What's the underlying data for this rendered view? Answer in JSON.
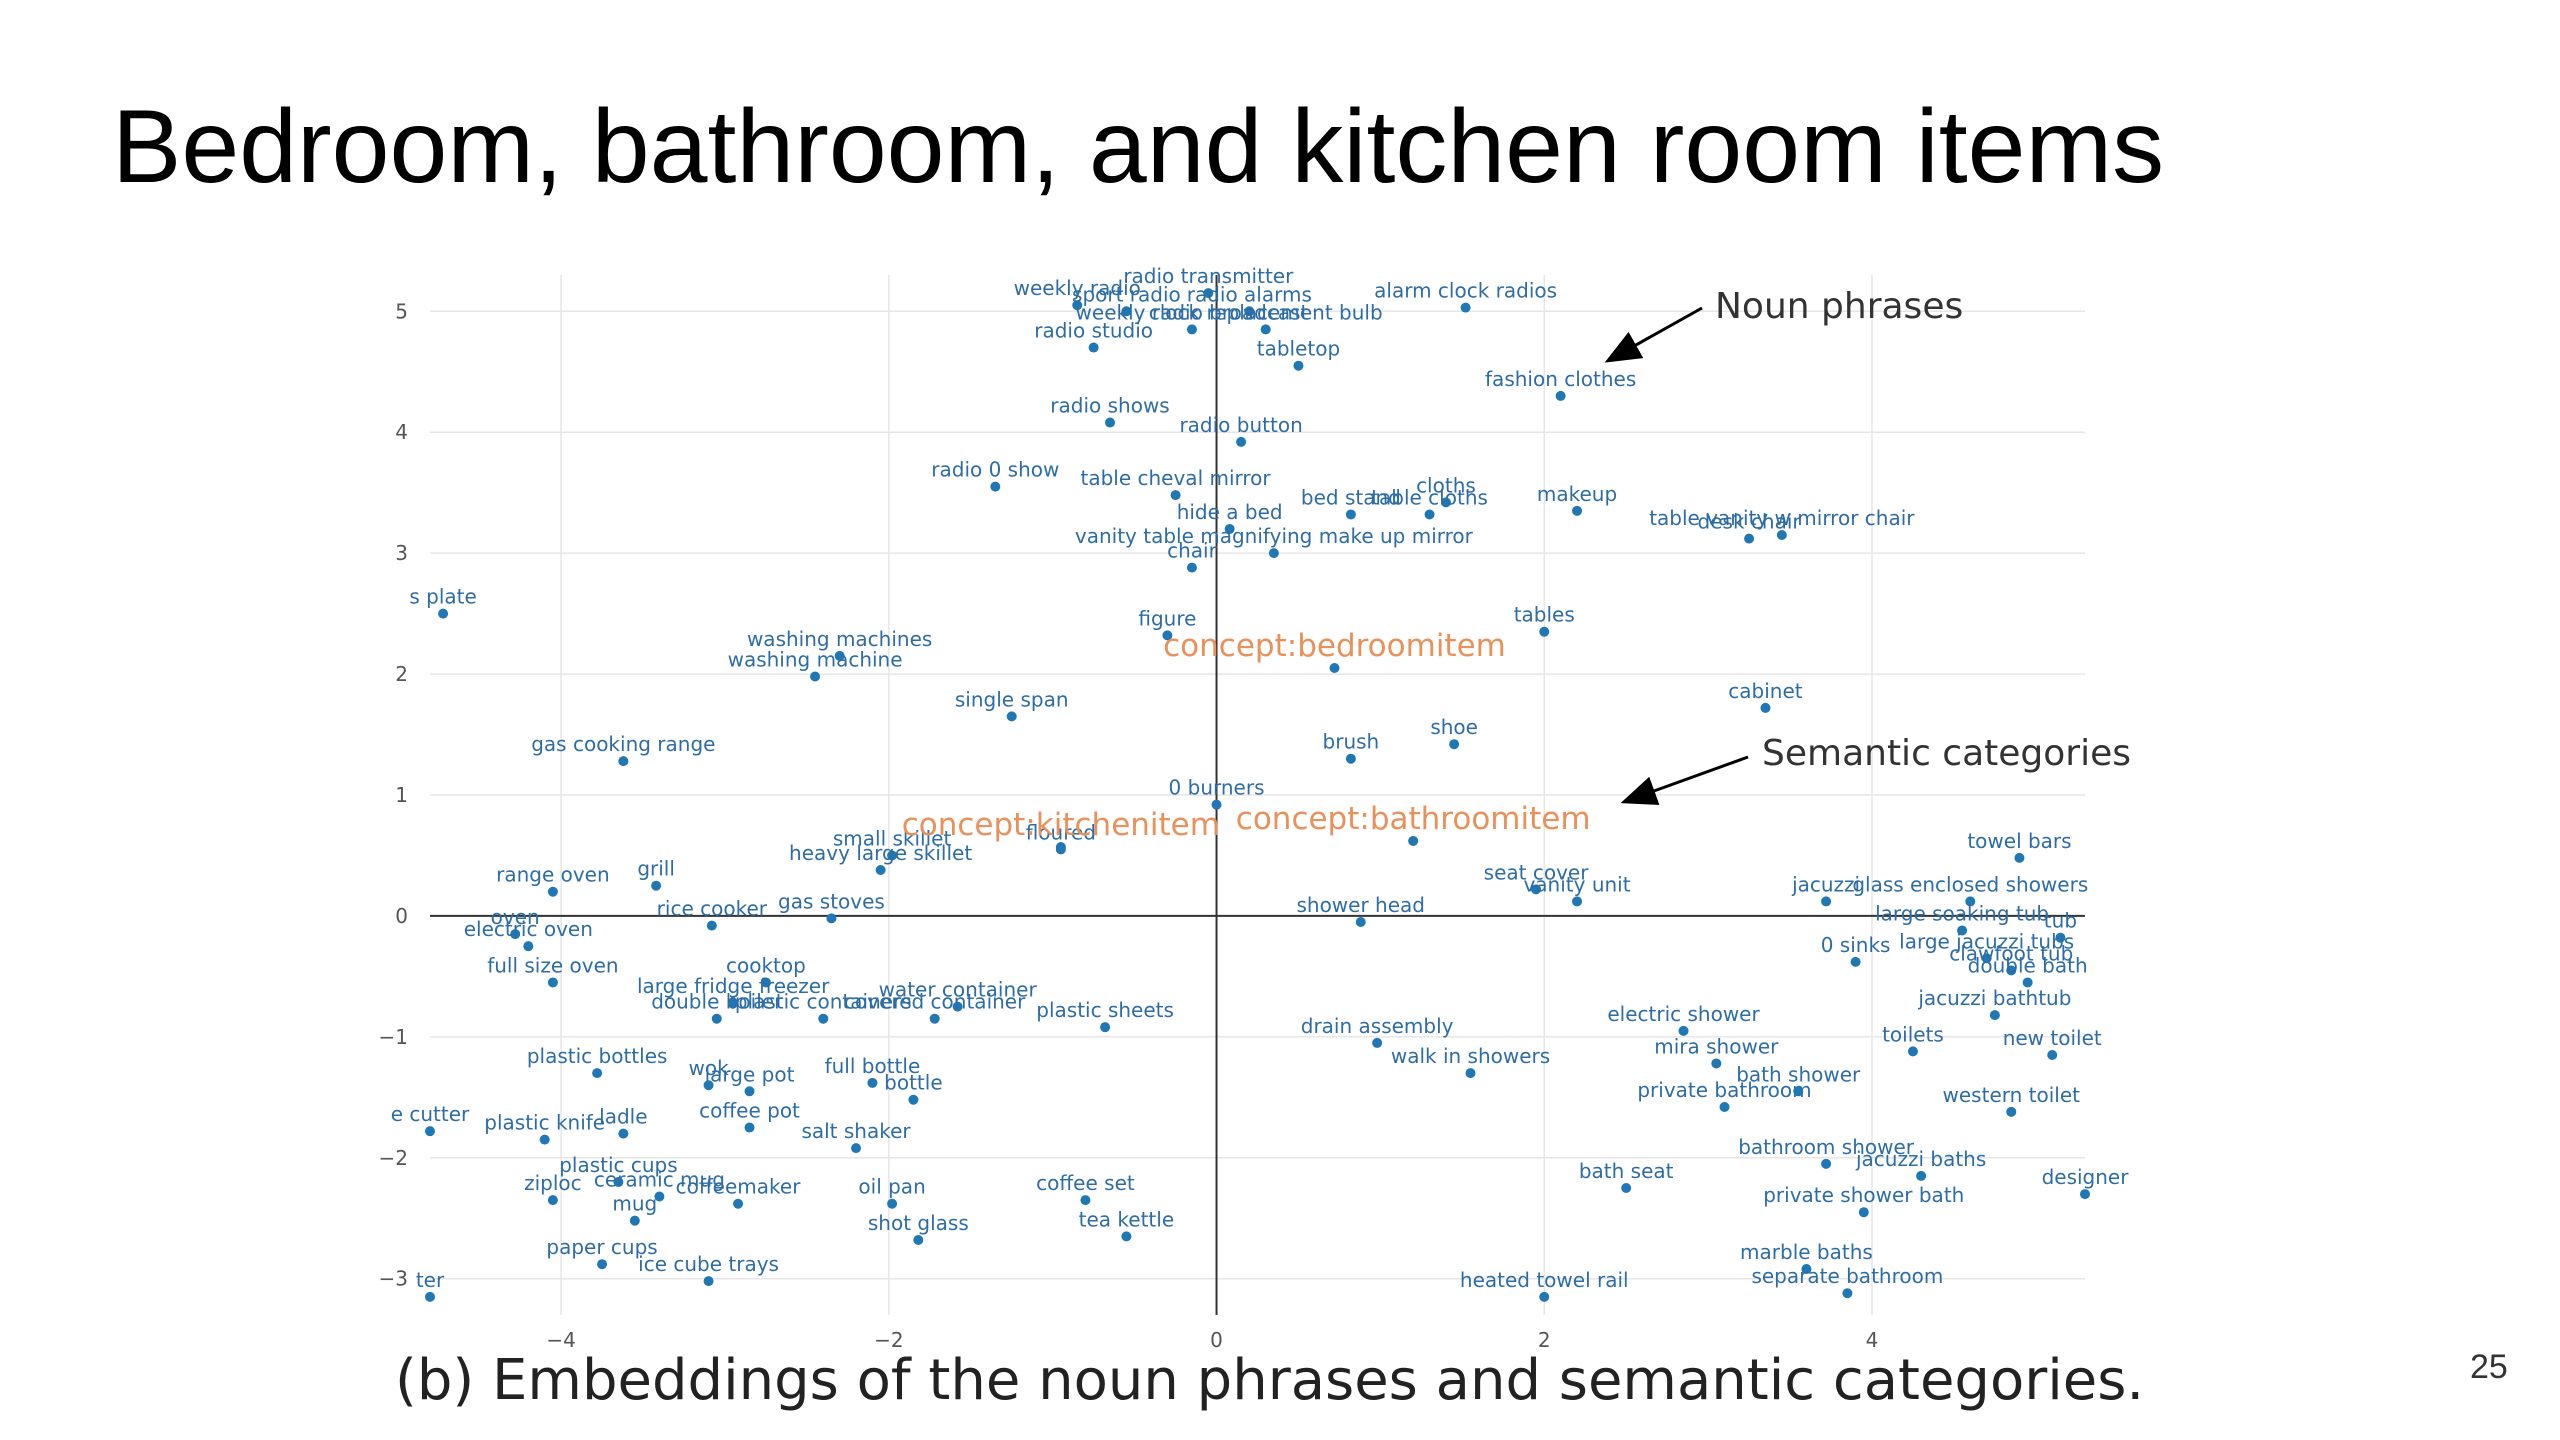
{
  "slide": {
    "title": "Bedroom, bathroom, and kitchen room items",
    "caption": "(b)  Embeddings of the noun phrases and semantic categories.",
    "page_number": "25"
  },
  "colors": {
    "point": "#1f77b4",
    "point_label": "#2e6da4",
    "category": "#e8915a",
    "axis": "#333333",
    "grid": "#e6e6e6"
  },
  "chart_data": {
    "type": "scatter",
    "xlim": [
      -4.8,
      5.3
    ],
    "ylim": [
      -3.3,
      5.3
    ],
    "x_ticks": [
      -4,
      -2,
      0,
      2,
      4
    ],
    "y_ticks": [
      -3,
      -2,
      -1,
      0,
      1,
      2,
      3,
      4,
      5
    ],
    "grid": true,
    "annotations": [
      {
        "text": "Noun phrases",
        "point_at": [
          2.4,
          4.6
        ]
      },
      {
        "text": "Semantic categories",
        "point_at": [
          2.5,
          0.95
        ]
      }
    ],
    "categories": [
      {
        "label": "concept:bedroomitem",
        "x": 0.72,
        "y": 2.05
      },
      {
        "label": "concept:bathroomitem",
        "x": 1.2,
        "y": 0.62
      },
      {
        "label": "concept:kitchenitem",
        "x": -0.95,
        "y": 0.57
      }
    ],
    "points": [
      {
        "label": "weekly radio",
        "x": -0.85,
        "y": 5.05
      },
      {
        "label": "radio transmitter",
        "x": -0.05,
        "y": 5.15
      },
      {
        "label": "sport radio",
        "x": -0.55,
        "y": 5.0
      },
      {
        "label": "radio alarms",
        "x": 0.2,
        "y": 5.0
      },
      {
        "label": "weekly radio broadcast",
        "x": -0.15,
        "y": 4.85
      },
      {
        "label": "clock replacement bulb",
        "x": 0.3,
        "y": 4.85
      },
      {
        "label": "alarm clock radios",
        "x": 1.52,
        "y": 5.03
      },
      {
        "label": "tabletop",
        "x": 0.5,
        "y": 4.55
      },
      {
        "label": "radio studio",
        "x": -0.75,
        "y": 4.7
      },
      {
        "label": "fashion clothes",
        "x": 2.1,
        "y": 4.3
      },
      {
        "label": "radio shows",
        "x": -0.65,
        "y": 4.08
      },
      {
        "label": "radio button",
        "x": 0.15,
        "y": 3.92
      },
      {
        "label": "radio 0 show",
        "x": -1.35,
        "y": 3.55
      },
      {
        "label": "table cheval mirror",
        "x": -0.25,
        "y": 3.48
      },
      {
        "label": "cloths",
        "x": 1.4,
        "y": 3.42
      },
      {
        "label": "table cloths",
        "x": 1.3,
        "y": 3.32
      },
      {
        "label": "bed stand",
        "x": 0.82,
        "y": 3.32
      },
      {
        "label": "makeup",
        "x": 2.2,
        "y": 3.35
      },
      {
        "label": "table vanity w mirror chair",
        "x": 3.45,
        "y": 3.15
      },
      {
        "label": "desk chair",
        "x": 3.25,
        "y": 3.12
      },
      {
        "label": "hide a bed",
        "x": 0.08,
        "y": 3.2
      },
      {
        "label": "vanity table magnifying make up mirror",
        "x": 0.35,
        "y": 3.0
      },
      {
        "label": "chair",
        "x": -0.15,
        "y": 2.88
      },
      {
        "label": "s plate",
        "x": -4.72,
        "y": 2.5
      },
      {
        "label": "washing machines",
        "x": -2.3,
        "y": 2.15
      },
      {
        "label": "washing machine",
        "x": -2.45,
        "y": 1.98
      },
      {
        "label": "figure",
        "x": -0.3,
        "y": 2.32
      },
      {
        "label": "tables",
        "x": 2.0,
        "y": 2.35
      },
      {
        "label": "single span",
        "x": -1.25,
        "y": 1.65
      },
      {
        "label": "cabinet",
        "x": 3.35,
        "y": 1.72
      },
      {
        "label": "shoe",
        "x": 1.45,
        "y": 1.42
      },
      {
        "label": "brush",
        "x": 0.82,
        "y": 1.3
      },
      {
        "label": "gas cooking range",
        "x": -3.62,
        "y": 1.28
      },
      {
        "label": "0 burners",
        "x": 0.0,
        "y": 0.92
      },
      {
        "label": "towel bars",
        "x": 4.9,
        "y": 0.48
      },
      {
        "label": "small skillet",
        "x": -1.98,
        "y": 0.5
      },
      {
        "label": "heavy large skillet",
        "x": -2.05,
        "y": 0.38
      },
      {
        "label": "floured",
        "x": -0.95,
        "y": 0.55
      },
      {
        "label": "range oven",
        "x": -4.05,
        "y": 0.2
      },
      {
        "label": "grill",
        "x": -3.42,
        "y": 0.25
      },
      {
        "label": "seat cover",
        "x": 1.95,
        "y": 0.22
      },
      {
        "label": "vanity unit",
        "x": 2.2,
        "y": 0.12
      },
      {
        "label": "jacuzzi",
        "x": 3.72,
        "y": 0.12
      },
      {
        "label": "glass enclosed showers",
        "x": 4.6,
        "y": 0.12
      },
      {
        "label": "rice cooker",
        "x": -3.08,
        "y": -0.08
      },
      {
        "label": "gas stoves",
        "x": -2.35,
        "y": -0.02
      },
      {
        "label": "shower head",
        "x": 0.88,
        "y": -0.05
      },
      {
        "label": "large soaking tub",
        "x": 4.55,
        "y": -0.12
      },
      {
        "label": "tub",
        "x": 5.15,
        "y": -0.18
      },
      {
        "label": "oven",
        "x": -4.28,
        "y": -0.15
      },
      {
        "label": "electric oven",
        "x": -4.2,
        "y": -0.25
      },
      {
        "label": "cooktop",
        "x": -2.75,
        "y": -0.55
      },
      {
        "label": "0 sinks",
        "x": 3.9,
        "y": -0.38
      },
      {
        "label": "large jacuzzi tubs",
        "x": 4.7,
        "y": -0.35
      },
      {
        "label": "clawfoot tub",
        "x": 4.85,
        "y": -0.45
      },
      {
        "label": "double bath",
        "x": 4.95,
        "y": -0.55
      },
      {
        "label": "full size oven",
        "x": -4.05,
        "y": -0.55
      },
      {
        "label": "large fridge freezer",
        "x": -2.95,
        "y": -0.72
      },
      {
        "label": "water container",
        "x": -1.58,
        "y": -0.75
      },
      {
        "label": "covered container",
        "x": -1.72,
        "y": -0.85
      },
      {
        "label": "double boiler",
        "x": -3.05,
        "y": -0.85
      },
      {
        "label": "plastic containers",
        "x": -2.4,
        "y": -0.85
      },
      {
        "label": "plastic sheets",
        "x": -0.68,
        "y": -0.92
      },
      {
        "label": "jacuzzi bathtub",
        "x": 4.75,
        "y": -0.82
      },
      {
        "label": "drain assembly",
        "x": 0.98,
        "y": -1.05
      },
      {
        "label": "electric shower",
        "x": 2.85,
        "y": -0.95
      },
      {
        "label": "toilets",
        "x": 4.25,
        "y": -1.12
      },
      {
        "label": "plastic bottles",
        "x": -3.78,
        "y": -1.3
      },
      {
        "label": "walk in showers",
        "x": 1.55,
        "y": -1.3
      },
      {
        "label": "mira shower",
        "x": 3.05,
        "y": -1.22
      },
      {
        "label": "new toilet",
        "x": 5.1,
        "y": -1.15
      },
      {
        "label": "wok",
        "x": -3.1,
        "y": -1.4
      },
      {
        "label": "large pot",
        "x": -2.85,
        "y": -1.45
      },
      {
        "label": "full bottle",
        "x": -2.1,
        "y": -1.38
      },
      {
        "label": "bottle",
        "x": -1.85,
        "y": -1.52
      },
      {
        "label": "private bathroom",
        "x": 3.1,
        "y": -1.58
      },
      {
        "label": "bath shower",
        "x": 3.55,
        "y": -1.45
      },
      {
        "label": "western toilet",
        "x": 4.85,
        "y": -1.62
      },
      {
        "label": "e cutter",
        "x": -4.8,
        "y": -1.78
      },
      {
        "label": "plastic knife",
        "x": -4.1,
        "y": -1.85
      },
      {
        "label": "ladle",
        "x": -3.62,
        "y": -1.8
      },
      {
        "label": "coffee pot",
        "x": -2.85,
        "y": -1.75
      },
      {
        "label": "salt shaker",
        "x": -2.2,
        "y": -1.92
      },
      {
        "label": "bathroom shower",
        "x": 3.72,
        "y": -2.05
      },
      {
        "label": "jacuzzi baths",
        "x": 4.3,
        "y": -2.15
      },
      {
        "label": "designer",
        "x": 5.3,
        "y": -2.3
      },
      {
        "label": "ziploc",
        "x": -4.05,
        "y": -2.35
      },
      {
        "label": "plastic cups",
        "x": -3.65,
        "y": -2.2
      },
      {
        "label": "ceramic mug",
        "x": -3.4,
        "y": -2.32
      },
      {
        "label": "coffeemaker",
        "x": -2.92,
        "y": -2.38
      },
      {
        "label": "mug",
        "x": -3.55,
        "y": -2.52
      },
      {
        "label": "oil pan",
        "x": -1.98,
        "y": -2.38
      },
      {
        "label": "coffee set",
        "x": -0.8,
        "y": -2.35
      },
      {
        "label": "bath seat",
        "x": 2.5,
        "y": -2.25
      },
      {
        "label": "private shower bath",
        "x": 3.95,
        "y": -2.45
      },
      {
        "label": "shot glass",
        "x": -1.82,
        "y": -2.68
      },
      {
        "label": "tea kettle",
        "x": -0.55,
        "y": -2.65
      },
      {
        "label": "marble baths",
        "x": 3.6,
        "y": -2.92
      },
      {
        "label": "paper cups",
        "x": -3.75,
        "y": -2.88
      },
      {
        "label": "ice cube trays",
        "x": -3.1,
        "y": -3.02
      },
      {
        "label": "heated towel rail",
        "x": 2.0,
        "y": -3.15
      },
      {
        "label": "separate bathroom",
        "x": 3.85,
        "y": -3.12
      },
      {
        "label": "ter",
        "x": -4.8,
        "y": -3.15
      }
    ]
  }
}
